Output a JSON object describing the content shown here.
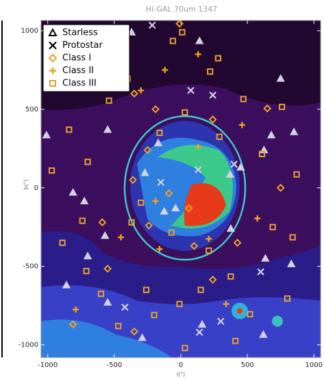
{
  "chart_data": {
    "type": "scatter",
    "title": "Hi-GAL 70um 1347",
    "x_label": "l(\")",
    "y_label": "b(\")",
    "xlim": [
      -1050,
      1050
    ],
    "ylim": [
      -1080,
      1065
    ],
    "xticks": [
      -1000,
      -500,
      0,
      500,
      1000
    ],
    "yticks": [
      -1000,
      -500,
      0,
      500,
      1000
    ],
    "legend": "upper left",
    "series": [
      {
        "name": "Starless",
        "color": "#d2d2e2",
        "legend_color": "#000000",
        "marker": "triangle",
        "x": [
          -370,
          -1010,
          -810,
          -725,
          -550,
          -570,
          -700,
          -860,
          -550,
          -270,
          -170,
          370,
          450,
          375,
          635,
          830,
          620,
          -290,
          140,
          750,
          850,
          680,
          160,
          -125,
          625,
          -40
        ],
        "values": [
          990,
          335,
          -30,
          -85,
          370,
          -305,
          -435,
          -620,
          -730,
          95,
          285,
          85,
          130,
          -260,
          -450,
          -485,
          -935,
          -955,
          935,
          695,
          355,
          335,
          -870,
          -150,
          240,
          -130
        ]
      },
      {
        "name": "Protostar",
        "color": "#d2d2e2",
        "legend_color": "#000000",
        "marker": "x",
        "x": [
          -215,
          75,
          240,
          130,
          400,
          600,
          -420,
          140,
          300,
          -150
        ],
        "values": [
          1035,
          620,
          590,
          115,
          150,
          -535,
          -760,
          -920,
          -850,
          35
        ]
      },
      {
        "name": "Class I",
        "color": "#f0a020",
        "marker": "diamond",
        "x": [
          -10,
          -350,
          -190,
          650,
          240,
          -250,
          -360,
          -240,
          60,
          -590,
          -810,
          -350,
          -550,
          240,
          425,
          750,
          -90,
          100
        ],
        "values": [
          1045,
          600,
          500,
          505,
          435,
          240,
          50,
          -240,
          -130,
          -220,
          -870,
          -915,
          -515,
          -585,
          -350,
          0,
          -35,
          -370
        ]
      },
      {
        "name": "Class II",
        "color": "#f0a020",
        "marker": "plus",
        "x": [
          130,
          -120,
          -300,
          460,
          575,
          210,
          -450,
          -160,
          340,
          -790,
          -190,
          130
        ],
        "values": [
          850,
          750,
          620,
          400,
          -195,
          -325,
          -315,
          -390,
          -740,
          -775,
          -85,
          260
        ]
      },
      {
        "name": "Class III",
        "color": "#e8a030",
        "marker": "square",
        "x": [
          10,
          -60,
          -400,
          -540,
          -840,
          -700,
          -970,
          -740,
          -890,
          -710,
          -600,
          -470,
          -200,
          30,
          410,
          520,
          800,
          870,
          610,
          470,
          760,
          290,
          280,
          220,
          30,
          -160,
          -300,
          -370,
          -70,
          210,
          375,
          150,
          -10,
          -260,
          690,
          840
        ],
        "values": [
          990,
          935,
          695,
          555,
          370,
          165,
          110,
          -210,
          -350,
          -530,
          -675,
          -880,
          -810,
          -1020,
          -975,
          -805,
          -705,
          85,
          215,
          565,
          515,
          325,
          825,
          740,
          480,
          350,
          -95,
          -220,
          -285,
          -400,
          -565,
          -650,
          -740,
          -650,
          -250,
          -315
        ]
      }
    ]
  }
}
